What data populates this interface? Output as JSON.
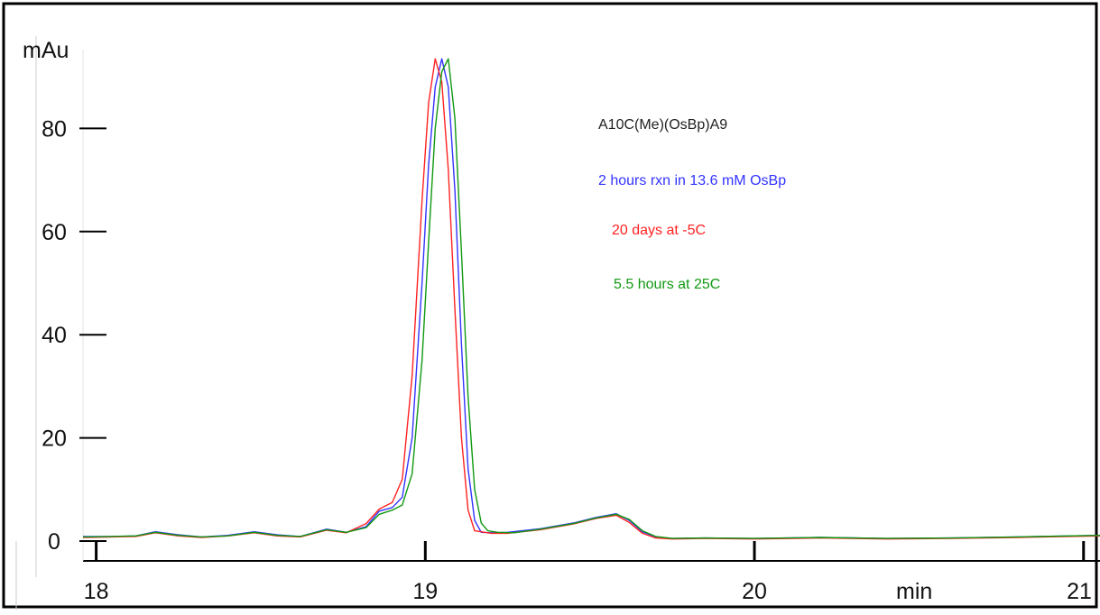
{
  "chart_data": {
    "type": "line",
    "y_unit_label": "mAu",
    "x_unit_label": "min",
    "xlim": [
      17.96,
      21.05
    ],
    "ylim": [
      -4,
      96
    ],
    "x_ticks": [
      18,
      19,
      20,
      21
    ],
    "x_tick_labels": [
      "18",
      "19",
      "20",
      "21"
    ],
    "y_ticks": [
      0,
      20,
      40,
      60,
      80
    ],
    "y_tick_labels": [
      "0",
      "20",
      "40",
      "60",
      "80"
    ],
    "annotations": [
      {
        "text": "A10C(Me)(OsBp)A9",
        "color": "#222222"
      },
      {
        "text": "2 hours rxn in 13.6 mM OsBp",
        "color": "#3333ff"
      },
      {
        "text": "20 days at -5C",
        "color": "#ff2222"
      },
      {
        "text": "5.5 hours at 25C",
        "color": "#119911"
      }
    ],
    "series": [
      {
        "color": "#3333ff",
        "x": [
          17.96,
          18.05,
          18.12,
          18.18,
          18.25,
          18.32,
          18.4,
          18.48,
          18.55,
          18.62,
          18.7,
          18.76,
          18.82,
          18.86,
          18.9,
          18.93,
          18.96,
          18.99,
          19.01,
          19.03,
          19.05,
          19.07,
          19.09,
          19.11,
          19.13,
          19.15,
          19.17,
          19.2,
          19.25,
          19.35,
          19.45,
          19.52,
          19.58,
          19.62,
          19.66,
          19.7,
          19.75,
          19.85,
          20.0,
          20.2,
          20.4,
          20.6,
          20.8,
          21.05
        ],
        "y": [
          0.9,
          0.9,
          1.0,
          1.8,
          1.2,
          0.8,
          1.1,
          1.8,
          1.2,
          0.9,
          2.3,
          1.7,
          2.8,
          5.8,
          6.5,
          8.5,
          20.0,
          50.0,
          73.0,
          88.0,
          93.5,
          88.0,
          68.0,
          38.0,
          14.0,
          4.0,
          1.7,
          1.6,
          1.7,
          2.4,
          3.5,
          4.6,
          5.3,
          4.0,
          1.8,
          0.8,
          0.5,
          0.6,
          0.5,
          0.7,
          0.5,
          0.6,
          0.8,
          1.1
        ]
      },
      {
        "color": "#ff2222",
        "x": [
          17.96,
          18.05,
          18.12,
          18.18,
          18.25,
          18.32,
          18.4,
          18.48,
          18.55,
          18.62,
          18.7,
          18.76,
          18.82,
          18.86,
          18.9,
          18.93,
          18.96,
          18.99,
          19.01,
          19.03,
          19.05,
          19.07,
          19.09,
          19.11,
          19.13,
          19.15,
          19.2,
          19.25,
          19.35,
          19.45,
          19.52,
          19.58,
          19.62,
          19.66,
          19.7,
          19.75,
          19.85,
          20.0,
          20.2,
          20.4,
          20.6,
          20.8,
          21.05
        ],
        "y": [
          0.7,
          0.8,
          0.9,
          1.6,
          1.0,
          0.7,
          1.0,
          1.6,
          1.0,
          0.8,
          2.1,
          1.6,
          3.4,
          6.2,
          7.5,
          12.0,
          32.0,
          66.0,
          85.0,
          93.5,
          89.0,
          72.0,
          45.0,
          20.0,
          6.0,
          2.0,
          1.5,
          1.5,
          2.2,
          3.3,
          4.4,
          5.0,
          3.6,
          1.5,
          0.6,
          0.4,
          0.5,
          0.4,
          0.6,
          0.4,
          0.5,
          0.7,
          1.0
        ]
      },
      {
        "color": "#119911",
        "x": [
          17.96,
          18.05,
          18.12,
          18.18,
          18.25,
          18.32,
          18.4,
          18.48,
          18.55,
          18.62,
          18.7,
          18.76,
          18.82,
          18.86,
          18.9,
          18.93,
          18.96,
          18.99,
          19.01,
          19.03,
          19.05,
          19.07,
          19.09,
          19.11,
          19.13,
          19.15,
          19.17,
          19.19,
          19.22,
          19.27,
          19.35,
          19.45,
          19.52,
          19.58,
          19.62,
          19.66,
          19.7,
          19.75,
          19.85,
          20.0,
          20.2,
          20.4,
          20.6,
          20.8,
          21.05
        ],
        "y": [
          0.8,
          0.9,
          1.0,
          1.7,
          1.1,
          0.8,
          1.0,
          1.7,
          1.1,
          0.9,
          2.2,
          1.7,
          2.6,
          5.2,
          6.0,
          7.0,
          13.0,
          35.0,
          58.0,
          80.0,
          91.0,
          93.5,
          82.0,
          56.0,
          28.0,
          10.0,
          3.5,
          2.0,
          1.7,
          1.6,
          2.3,
          3.4,
          4.5,
          5.2,
          4.2,
          2.0,
          0.9,
          0.5,
          0.6,
          0.5,
          0.7,
          0.5,
          0.6,
          0.8,
          1.1
        ]
      }
    ]
  }
}
